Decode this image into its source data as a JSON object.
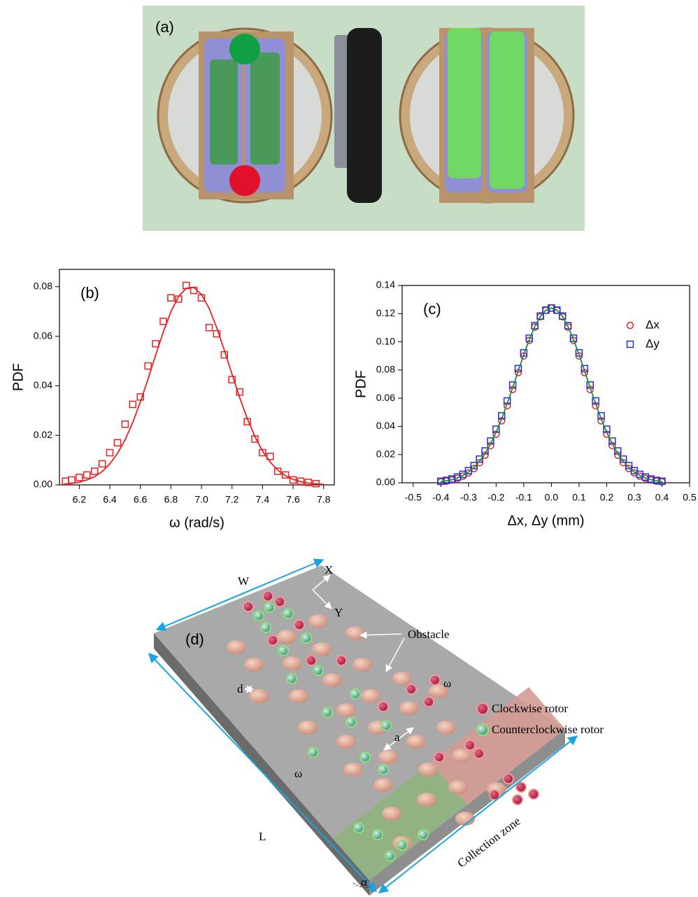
{
  "photo": {
    "label": "(a)"
  },
  "chart_data": [
    {
      "type": "scatter",
      "label": "(b)",
      "xlabel": "ω (rad/s)",
      "ylabel": "PDF",
      "xlim": [
        6.07,
        7.87
      ],
      "ylim": [
        0,
        0.087
      ],
      "xticks": [
        6.2,
        6.4,
        6.6,
        6.8,
        {
          "value": 7,
          "label": "7.0"
        },
        7.2,
        7.4,
        7.6,
        7.8
      ],
      "yticks": [
        {
          "value": 0,
          "label": "0.00"
        },
        {
          "value": 0.02,
          "label": "0.02"
        },
        {
          "value": 0.04,
          "label": "0.04"
        },
        {
          "value": 0.06,
          "label": "0.06"
        },
        {
          "value": 0.08,
          "label": "0.08"
        }
      ],
      "series": [
        {
          "color": "#e8201f",
          "marker": "square",
          "line": false,
          "x": [
            6.11,
            6.15,
            6.2,
            6.25,
            6.3,
            6.35,
            6.4,
            6.45,
            6.5,
            6.55,
            6.6,
            6.65,
            6.7,
            6.75,
            6.8,
            6.85,
            6.9,
            6.95,
            7.0,
            7.05,
            7.1,
            7.15,
            7.2,
            7.25,
            7.3,
            7.35,
            7.4,
            7.45,
            7.5,
            7.55,
            7.6,
            7.65,
            7.7,
            7.75
          ],
          "values": [
            0.0015,
            0.002,
            0.003,
            0.004,
            0.0055,
            0.0085,
            0.013,
            0.017,
            0.0245,
            0.0325,
            0.0355,
            0.048,
            0.057,
            0.066,
            0.0755,
            0.075,
            0.0805,
            0.0785,
            0.0755,
            0.0635,
            0.061,
            0.0525,
            0.0425,
            0.0375,
            0.0255,
            0.0185,
            0.013,
            0.0115,
            0.0055,
            0.004,
            0.002,
            0.0015,
            0.001,
            0.0005
          ]
        },
        {
          "color": "#e8201f",
          "marker": "none",
          "line": true,
          "x": [
            6.1,
            6.15,
            6.2,
            6.25,
            6.3,
            6.35,
            6.4,
            6.45,
            6.5,
            6.55,
            6.6,
            6.65,
            6.7,
            6.75,
            6.8,
            6.85,
            6.9,
            6.95,
            7.0,
            7.05,
            7.1,
            7.15,
            7.2,
            7.25,
            7.3,
            7.35,
            7.4,
            7.45,
            7.5,
            7.55,
            7.6,
            7.65,
            7.7,
            7.75,
            7.8
          ],
          "values": [
            0.0003,
            0.0006,
            0.0011,
            0.002,
            0.0033,
            0.0054,
            0.0085,
            0.0127,
            0.0182,
            0.0252,
            0.0335,
            0.0427,
            0.0524,
            0.0617,
            0.0699,
            0.076,
            0.0794,
            0.0797,
            0.0769,
            0.0713,
            0.0635,
            0.0543,
            0.0447,
            0.0353,
            0.0268,
            0.0195,
            0.0137,
            0.0092,
            0.0059,
            0.0037,
            0.0022,
            0.0013,
            0.0007,
            0.0004,
            0.0002
          ]
        }
      ]
    },
    {
      "type": "scatter",
      "label": "(c)",
      "xlabel": "Δx, Δy (mm)",
      "ylabel": "PDF",
      "legend": "upper right",
      "xlim": [
        -0.54,
        0.5
      ],
      "ylim": [
        0,
        0.14
      ],
      "xticks": [
        -0.5,
        -0.4,
        -0.3,
        -0.2,
        -0.1,
        {
          "value": 0,
          "label": "0.0"
        },
        0.1,
        0.2,
        0.3,
        0.4,
        0.5
      ],
      "yticks": [
        {
          "value": 0,
          "label": "0.00"
        },
        {
          "value": 0.02,
          "label": "0.02"
        },
        {
          "value": 0.04,
          "label": "0.04"
        },
        {
          "value": 0.06,
          "label": "0.06"
        },
        {
          "value": 0.08,
          "label": "0.08"
        },
        {
          "value": 0.1,
          "label": "0.10"
        },
        {
          "value": 0.12,
          "label": "0.12"
        },
        {
          "value": 0.14,
          "label": "0.14"
        }
      ],
      "series": [
        {
          "name": "Δx",
          "color": "#e8201f",
          "marker": "circle",
          "line": false,
          "x": [
            -0.4,
            -0.38,
            -0.36,
            -0.34,
            -0.32,
            -0.3,
            -0.28,
            -0.26,
            -0.24,
            -0.22,
            -0.2,
            -0.18,
            -0.16,
            -0.14,
            -0.12,
            -0.1,
            -0.08,
            -0.06,
            -0.04,
            -0.02,
            0,
            0.02,
            0.04,
            0.06,
            0.08,
            0.1,
            0.12,
            0.14,
            0.16,
            0.18,
            0.2,
            0.22,
            0.24,
            0.26,
            0.28,
            0.3,
            0.32,
            0.34,
            0.36,
            0.38,
            0.4
          ],
          "values": [
            0.0007,
            0.0012,
            0.002,
            0.0031,
            0.0047,
            0.007,
            0.0101,
            0.0143,
            0.0196,
            0.0264,
            0.0345,
            0.044,
            0.0547,
            0.0662,
            0.0782,
            0.09,
            0.101,
            0.1105,
            0.1178,
            0.1224,
            0.124,
            0.1224,
            0.1178,
            0.1105,
            0.101,
            0.09,
            0.0782,
            0.0662,
            0.0547,
            0.044,
            0.0345,
            0.0264,
            0.0196,
            0.0143,
            0.0101,
            0.007,
            0.0047,
            0.0031,
            0.002,
            0.0012,
            0.0007
          ]
        },
        {
          "name": "Δy",
          "color": "#1f2fd6",
          "marker": "square",
          "line": false,
          "x": [
            -0.4,
            -0.38,
            -0.36,
            -0.34,
            -0.32,
            -0.3,
            -0.28,
            -0.26,
            -0.24,
            -0.22,
            -0.2,
            -0.18,
            -0.16,
            -0.14,
            -0.12,
            -0.1,
            -0.08,
            -0.06,
            -0.04,
            -0.02,
            0,
            0.02,
            0.04,
            0.06,
            0.08,
            0.1,
            0.12,
            0.14,
            0.16,
            0.18,
            0.2,
            0.22,
            0.24,
            0.26,
            0.28,
            0.3,
            0.32,
            0.34,
            0.36,
            0.38,
            0.4
          ],
          "values": [
            0.0011,
            0.0017,
            0.0027,
            0.0041,
            0.006,
            0.0086,
            0.0122,
            0.0168,
            0.0226,
            0.0296,
            0.038,
            0.0475,
            0.0581,
            0.0694,
            0.081,
            0.0922,
            0.1026,
            0.1115,
            0.1183,
            0.1225,
            0.124,
            0.1225,
            0.1183,
            0.1115,
            0.1026,
            0.0922,
            0.081,
            0.0694,
            0.0581,
            0.0475,
            0.038,
            0.0296,
            0.0226,
            0.0168,
            0.0122,
            0.0086,
            0.006,
            0.0041,
            0.0027,
            0.0017,
            0.0011
          ]
        },
        {
          "color": "#1e8a3a",
          "marker": "none",
          "line": true,
          "x": [
            -0.4,
            -0.38,
            -0.36,
            -0.34,
            -0.32,
            -0.3,
            -0.28,
            -0.26,
            -0.24,
            -0.22,
            -0.2,
            -0.18,
            -0.16,
            -0.14,
            -0.12,
            -0.1,
            -0.08,
            -0.06,
            -0.04,
            -0.02,
            0,
            0.02,
            0.04,
            0.06,
            0.08,
            0.1,
            0.12,
            0.14,
            0.16,
            0.18,
            0.2,
            0.22,
            0.24,
            0.26,
            0.28,
            0.3,
            0.32,
            0.34,
            0.36,
            0.38,
            0.4
          ],
          "values": [
            0.0009,
            0.0014,
            0.0022,
            0.0034,
            0.0052,
            0.0076,
            0.0109,
            0.0153,
            0.0208,
            0.0277,
            0.0359,
            0.0454,
            0.0561,
            0.0675,
            0.0794,
            0.0909,
            0.1017,
            0.1109,
            0.118,
            0.1225,
            0.124,
            0.1225,
            0.118,
            0.1109,
            0.1017,
            0.0909,
            0.0794,
            0.0675,
            0.0561,
            0.0454,
            0.0359,
            0.0277,
            0.0208,
            0.0153,
            0.0109,
            0.0076,
            0.0052,
            0.0034,
            0.0022,
            0.0014,
            0.0009
          ]
        }
      ]
    }
  ],
  "diagram": {
    "label": "(d)",
    "width": "W",
    "length": "L",
    "axis_x": "X",
    "axis_y": "Y",
    "obstacle": "Obstacle",
    "diameter": "d",
    "spacing": "a",
    "omega_cw": "ω",
    "omega_ccw": "ω",
    "angle": "α",
    "collection": "Collection zone",
    "legend_cw": "Clockwise rotor",
    "legend_ccw": "Counterclockwise rotor"
  }
}
